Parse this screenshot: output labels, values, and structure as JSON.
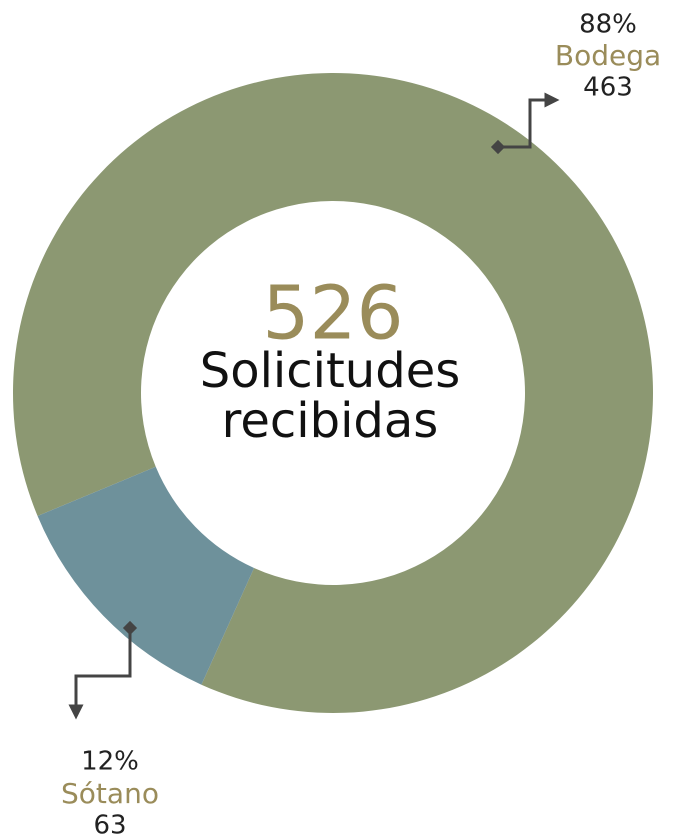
{
  "chart_data": {
    "type": "donut",
    "categories": [
      "Bodega",
      "Sótano"
    ],
    "values": [
      463,
      63
    ],
    "percent_labels": [
      "88%",
      "12%"
    ],
    "colors": [
      "#8c9872",
      "#6e919b"
    ],
    "center_value": 526,
    "center_label": [
      "Solicitudes",
      "recibidas"
    ]
  }
}
